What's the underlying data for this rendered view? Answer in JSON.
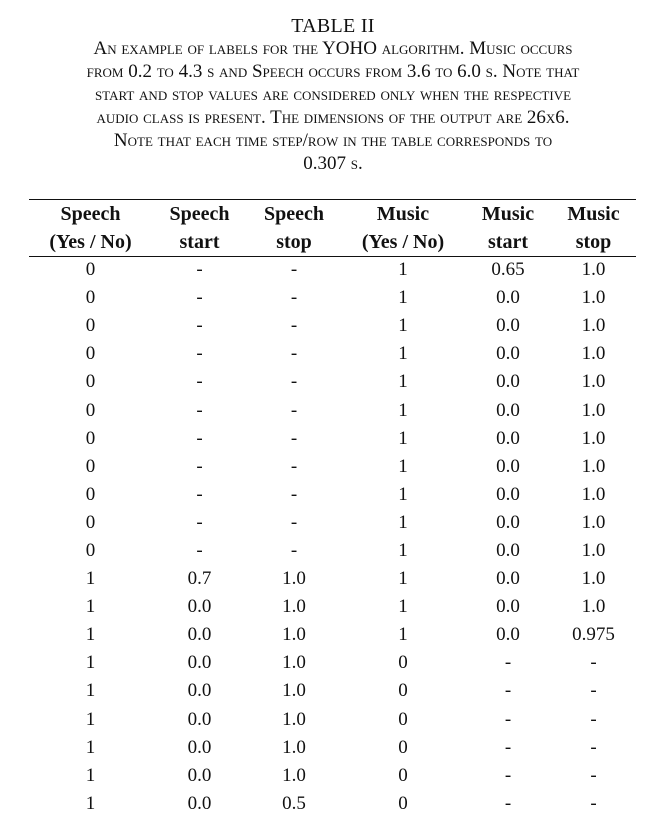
{
  "table_label": "TABLE II",
  "caption_lines": [
    "An example of labels for the YOHO algorithm. Music occurs",
    "from 0.2 to 4.3 s and Speech occurs from 3.6 to 6.0 s. Note that",
    "start and stop values are considered only when the respective",
    "audio class is present. The dimensions of the output are 26x6.",
    "Note that each time step/row in the table corresponds to",
    "0.307 s."
  ],
  "columns": [
    {
      "line1": "Speech",
      "line2": "(Yes / No)"
    },
    {
      "line1": "Speech",
      "line2": "start"
    },
    {
      "line1": "Speech",
      "line2": "stop"
    },
    {
      "line1": "Music",
      "line2": "(Yes / No)"
    },
    {
      "line1": "Music",
      "line2": "start"
    },
    {
      "line1": "Music",
      "line2": "stop"
    }
  ],
  "rows": [
    [
      "0",
      "-",
      "-",
      "1",
      "0.65",
      "1.0"
    ],
    [
      "0",
      "-",
      "-",
      "1",
      "0.0",
      "1.0"
    ],
    [
      "0",
      "-",
      "-",
      "1",
      "0.0",
      "1.0"
    ],
    [
      "0",
      "-",
      "-",
      "1",
      "0.0",
      "1.0"
    ],
    [
      "0",
      "-",
      "-",
      "1",
      "0.0",
      "1.0"
    ],
    [
      "0",
      "-",
      "-",
      "1",
      "0.0",
      "1.0"
    ],
    [
      "0",
      "-",
      "-",
      "1",
      "0.0",
      "1.0"
    ],
    [
      "0",
      "-",
      "-",
      "1",
      "0.0",
      "1.0"
    ],
    [
      "0",
      "-",
      "-",
      "1",
      "0.0",
      "1.0"
    ],
    [
      "0",
      "-",
      "-",
      "1",
      "0.0",
      "1.0"
    ],
    [
      "0",
      "-",
      "-",
      "1",
      "0.0",
      "1.0"
    ],
    [
      "1",
      "0.7",
      "1.0",
      "1",
      "0.0",
      "1.0"
    ],
    [
      "1",
      "0.0",
      "1.0",
      "1",
      "0.0",
      "1.0"
    ],
    [
      "1",
      "0.0",
      "1.0",
      "1",
      "0.0",
      "0.975"
    ],
    [
      "1",
      "0.0",
      "1.0",
      "0",
      "-",
      "-"
    ],
    [
      "1",
      "0.0",
      "1.0",
      "0",
      "-",
      "-"
    ],
    [
      "1",
      "0.0",
      "1.0",
      "0",
      "-",
      "-"
    ],
    [
      "1",
      "0.0",
      "1.0",
      "0",
      "-",
      "-"
    ],
    [
      "1",
      "0.0",
      "1.0",
      "0",
      "-",
      "-"
    ],
    [
      "1",
      "0.0",
      "0.5",
      "0",
      "-",
      "-"
    ]
  ]
}
